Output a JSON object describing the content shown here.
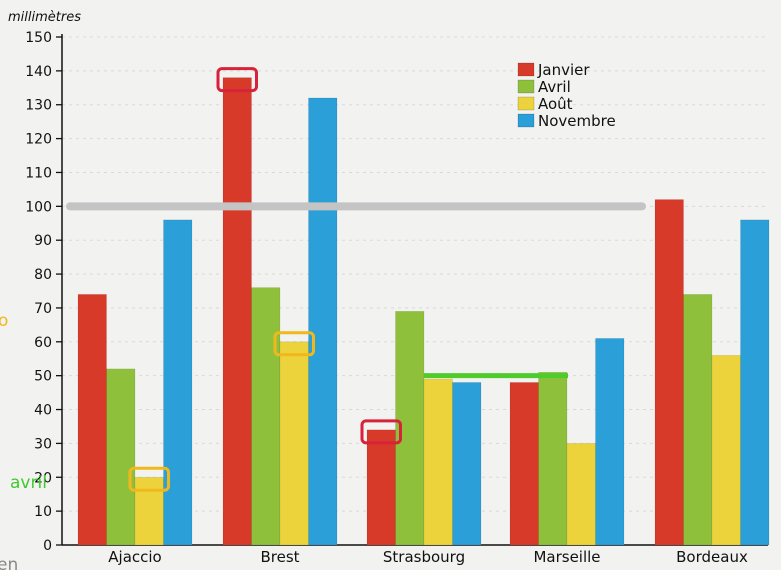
{
  "chart_data": {
    "type": "bar",
    "ylabel": "millimètres",
    "ylim": [
      0,
      150
    ],
    "yticks": [
      0,
      10,
      20,
      30,
      40,
      50,
      60,
      70,
      80,
      90,
      100,
      110,
      120,
      130,
      140,
      150
    ],
    "grid": true,
    "legend_position": "top-right",
    "categories": [
      "Ajaccio",
      "Brest",
      "Strasbourg",
      "Marseille",
      "Bordeaux"
    ],
    "series": [
      {
        "name": "Janvier",
        "color": "#d83a2a",
        "values": [
          74,
          138,
          34,
          48,
          102
        ]
      },
      {
        "name": "Avril",
        "color": "#8fc03c",
        "values": [
          52,
          76,
          69,
          51,
          74
        ]
      },
      {
        "name": "Août",
        "color": "#ecd33c",
        "values": [
          20,
          60,
          49,
          30,
          56
        ]
      },
      {
        "name": "Novembre",
        "color": "#2a9fd8",
        "values": [
          96,
          132,
          48,
          61,
          96
        ]
      }
    ],
    "annotations": {
      "gray_line": {
        "value": 100,
        "color": "#c4c4c4"
      },
      "green_line": {
        "value": 50,
        "color": "#4fcb2c"
      },
      "boxes": [
        {
          "category": "Brest",
          "series": "Janvier",
          "color": "#d8223a"
        },
        {
          "category": "Strasbourg",
          "series": "Janvier",
          "color": "#d8223a"
        },
        {
          "category": "Ajaccio",
          "series": "Août",
          "color": "#f0b81a"
        },
        {
          "category": "Brest",
          "series": "Août",
          "color": "#f0b81a"
        }
      ]
    }
  },
  "margin_notes": {
    "left_mid": "o",
    "avril": "avril",
    "bottom_left": "en"
  }
}
